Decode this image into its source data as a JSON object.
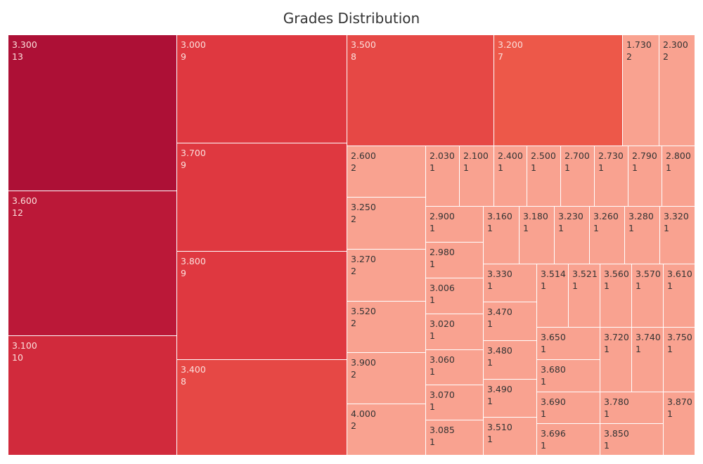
{
  "chart_data": {
    "type": "treemap",
    "title": "Grades Distribution",
    "colors": {
      "c13": "#ad1036",
      "c12": "#bb1838",
      "c10": "#d12a3c",
      "c9": "#df3840",
      "c8": "#e64845",
      "c7": "#ed5849",
      "c2": "#f9a290",
      "c1": "#f9a290",
      "light_text": "#fbe0dc",
      "dark_text": "#333333"
    },
    "items": [
      {
        "grade": "3.300",
        "count": "13"
      },
      {
        "grade": "3.600",
        "count": "12"
      },
      {
        "grade": "3.100",
        "count": "10"
      },
      {
        "grade": "3.000",
        "count": "9"
      },
      {
        "grade": "3.700",
        "count": "9"
      },
      {
        "grade": "3.800",
        "count": "9"
      },
      {
        "grade": "3.400",
        "count": "8"
      },
      {
        "grade": "3.500",
        "count": "8"
      },
      {
        "grade": "3.200",
        "count": "7"
      },
      {
        "grade": "1.730",
        "count": "2"
      },
      {
        "grade": "2.300",
        "count": "2"
      },
      {
        "grade": "2.600",
        "count": "2"
      },
      {
        "grade": "3.250",
        "count": "2"
      },
      {
        "grade": "3.270",
        "count": "2"
      },
      {
        "grade": "3.520",
        "count": "2"
      },
      {
        "grade": "3.900",
        "count": "2"
      },
      {
        "grade": "4.000",
        "count": "2"
      },
      {
        "grade": "2.030",
        "count": "1"
      },
      {
        "grade": "2.100",
        "count": "1"
      },
      {
        "grade": "2.400",
        "count": "1"
      },
      {
        "grade": "2.500",
        "count": "1"
      },
      {
        "grade": "2.700",
        "count": "1"
      },
      {
        "grade": "2.730",
        "count": "1"
      },
      {
        "grade": "2.790",
        "count": "1"
      },
      {
        "grade": "2.800",
        "count": "1"
      },
      {
        "grade": "2.900",
        "count": "1"
      },
      {
        "grade": "2.980",
        "count": "1"
      },
      {
        "grade": "3.006",
        "count": "1"
      },
      {
        "grade": "3.020",
        "count": "1"
      },
      {
        "grade": "3.060",
        "count": "1"
      },
      {
        "grade": "3.070",
        "count": "1"
      },
      {
        "grade": "3.085",
        "count": "1"
      },
      {
        "grade": "3.160",
        "count": "1"
      },
      {
        "grade": "3.180",
        "count": "1"
      },
      {
        "grade": "3.230",
        "count": "1"
      },
      {
        "grade": "3.260",
        "count": "1"
      },
      {
        "grade": "3.280",
        "count": "1"
      },
      {
        "grade": "3.320",
        "count": "1"
      },
      {
        "grade": "3.330",
        "count": "1"
      },
      {
        "grade": "3.470",
        "count": "1"
      },
      {
        "grade": "3.480",
        "count": "1"
      },
      {
        "grade": "3.490",
        "count": "1"
      },
      {
        "grade": "3.510",
        "count": "1"
      },
      {
        "grade": "3.514",
        "count": "1"
      },
      {
        "grade": "3.521",
        "count": "1"
      },
      {
        "grade": "3.560",
        "count": "1"
      },
      {
        "grade": "3.570",
        "count": "1"
      },
      {
        "grade": "3.610",
        "count": "1"
      },
      {
        "grade": "3.650",
        "count": "1"
      },
      {
        "grade": "3.680",
        "count": "1"
      },
      {
        "grade": "3.720",
        "count": "1"
      },
      {
        "grade": "3.740",
        "count": "1"
      },
      {
        "grade": "3.750",
        "count": "1"
      },
      {
        "grade": "3.690",
        "count": "1"
      },
      {
        "grade": "3.696",
        "count": "1"
      },
      {
        "grade": "3.780",
        "count": "1"
      },
      {
        "grade": "3.850",
        "count": "1"
      },
      {
        "grade": "3.870",
        "count": "1"
      }
    ]
  }
}
